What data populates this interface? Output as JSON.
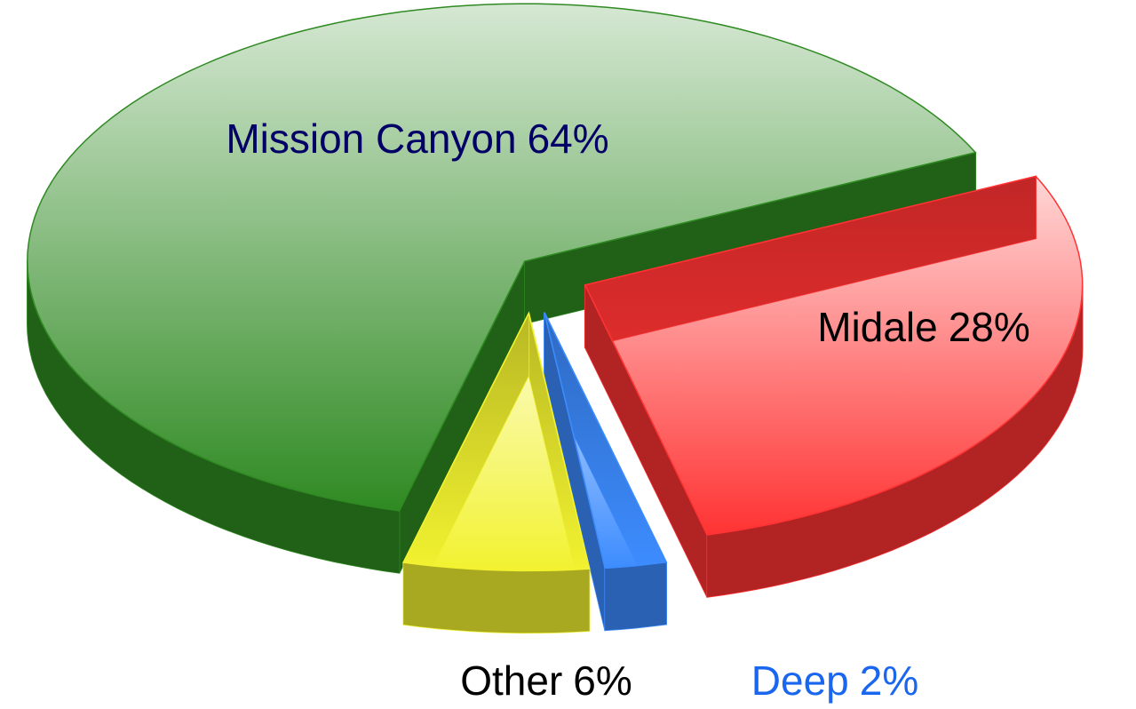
{
  "chart_data": {
    "type": "pie",
    "categories": [
      "Mission Canyon",
      "Other",
      "Deep",
      "Midale"
    ],
    "values": [
      64,
      6,
      2,
      28
    ],
    "value_labels": [
      "64%",
      "6%",
      "2%",
      "28%"
    ],
    "colors": [
      "#2f8a22",
      "#f2f230",
      "#3d8cff",
      "#ff3333"
    ],
    "label_colors": [
      "#000066",
      "#000000",
      "#1a66ee",
      "#000000"
    ]
  }
}
